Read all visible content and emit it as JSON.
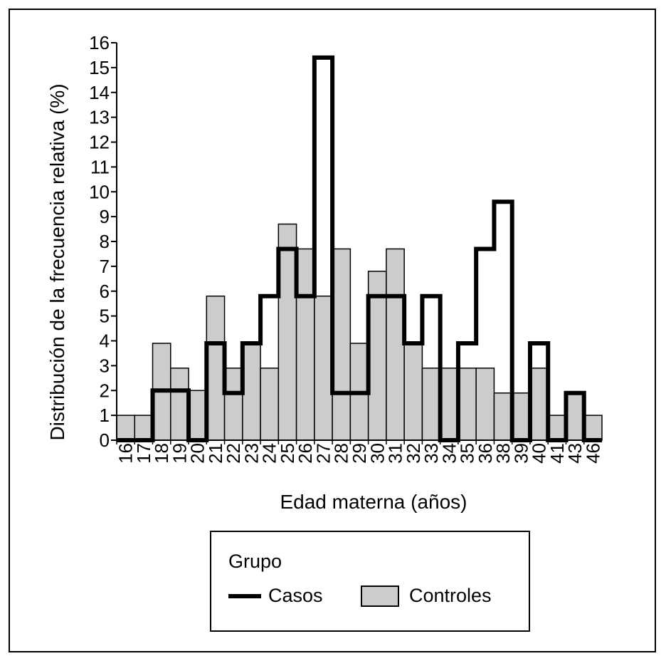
{
  "chart_data": {
    "type": "bar",
    "title": "",
    "xlabel": "Edad materna (años)",
    "ylabel": "Distribución de la frecuencia relativa (%)",
    "ylim": [
      0,
      16
    ],
    "yticks": [
      "0",
      "1",
      "2",
      "3",
      "4",
      "5",
      "6",
      "7",
      "8",
      "9",
      "10",
      "11",
      "12",
      "13",
      "14",
      "15",
      "16"
    ],
    "categories": [
      "16",
      "17",
      "18",
      "19",
      "20",
      "21",
      "22",
      "23",
      "24",
      "25",
      "26",
      "27",
      "28",
      "29",
      "30",
      "31",
      "32",
      "33",
      "34",
      "35",
      "36",
      "38",
      "39",
      "40",
      "41",
      "43",
      "46"
    ],
    "series": [
      {
        "name": "Casos",
        "style": "step-outline",
        "values": [
          0,
          0,
          2,
          2,
          0,
          3.9,
          1.9,
          3.9,
          5.8,
          7.7,
          5.8,
          15.4,
          1.9,
          1.9,
          5.8,
          5.8,
          3.9,
          5.8,
          0,
          3.9,
          7.7,
          9.6,
          0,
          3.9,
          0,
          1.9,
          0
        ]
      },
      {
        "name": "Controles",
        "style": "filled",
        "values": [
          1,
          1,
          3.9,
          2.9,
          2,
          5.8,
          2.9,
          3.9,
          2.9,
          8.7,
          7.7,
          5.8,
          7.7,
          3.9,
          6.8,
          7.7,
          3.9,
          2.9,
          2.9,
          2.9,
          2.9,
          1.9,
          1.9,
          2.9,
          1,
          1.9,
          1
        ]
      }
    ],
    "legend": {
      "title": "Grupo",
      "position": "bottom"
    },
    "colors": {
      "controls_fill": "#cccccc",
      "cases_line": "#000000",
      "outline": "#000000"
    }
  }
}
